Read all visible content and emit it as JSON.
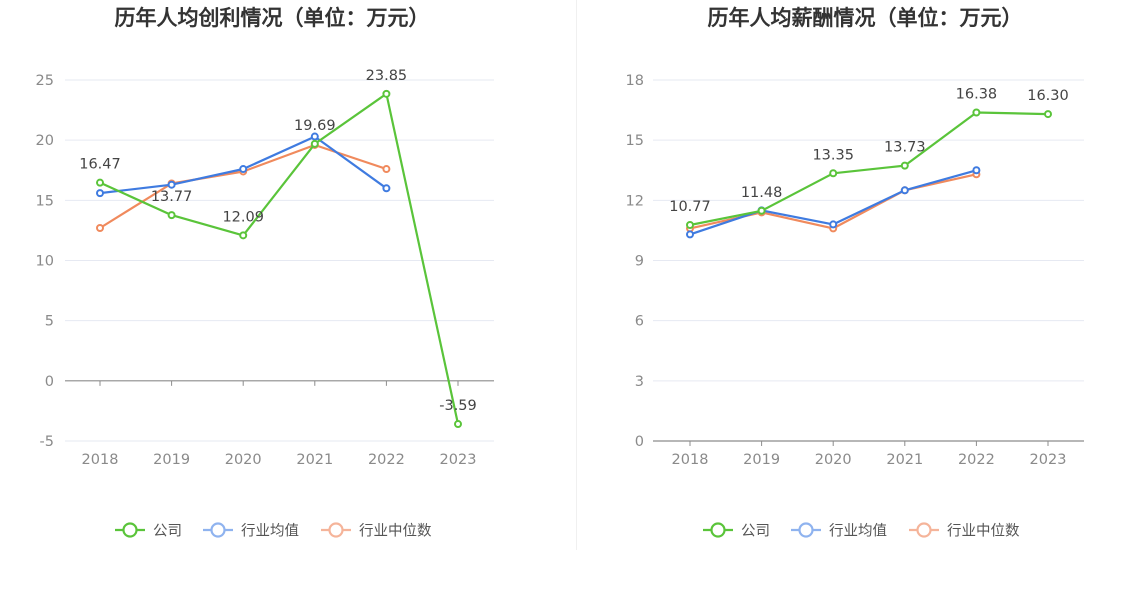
{
  "chart_data": [
    {
      "type": "line",
      "title": "历年人均创利情况（单位：万元）",
      "categories": [
        "2018",
        "2019",
        "2020",
        "2021",
        "2022",
        "2023"
      ],
      "ylim": [
        -5,
        25
      ],
      "yticks": [
        -5,
        0,
        5,
        10,
        15,
        20,
        25
      ],
      "grid": true,
      "legend_position": "bottom",
      "series": [
        {
          "name": "公司",
          "color": "#5ac43a",
          "values": [
            16.47,
            13.77,
            12.09,
            19.69,
            23.85,
            -3.59
          ],
          "labeled": true
        },
        {
          "name": "行业均值",
          "color": "#3f7be0",
          "values": [
            15.6,
            16.3,
            17.6,
            20.3,
            16.0,
            null
          ],
          "labeled": false
        },
        {
          "name": "行业中位数",
          "color": "#f08a5d",
          "values": [
            12.7,
            16.4,
            17.4,
            19.6,
            17.6,
            null
          ],
          "labeled": false
        }
      ]
    },
    {
      "type": "line",
      "title": "历年人均薪酬情况（单位：万元）",
      "categories": [
        "2018",
        "2019",
        "2020",
        "2021",
        "2022",
        "2023"
      ],
      "ylim": [
        0,
        18
      ],
      "yticks": [
        0,
        3,
        6,
        9,
        12,
        15,
        18
      ],
      "grid": true,
      "legend_position": "bottom",
      "series": [
        {
          "name": "公司",
          "color": "#5ac43a",
          "values": [
            10.77,
            11.48,
            13.35,
            13.73,
            16.38,
            16.3
          ],
          "labeled": true
        },
        {
          "name": "行业均值",
          "color": "#3f7be0",
          "values": [
            10.3,
            11.5,
            10.8,
            12.5,
            13.5,
            null
          ],
          "labeled": false
        },
        {
          "name": "行业中位数",
          "color": "#f08a5d",
          "values": [
            10.6,
            11.4,
            10.6,
            12.5,
            13.3,
            null
          ],
          "labeled": false
        }
      ]
    }
  ]
}
